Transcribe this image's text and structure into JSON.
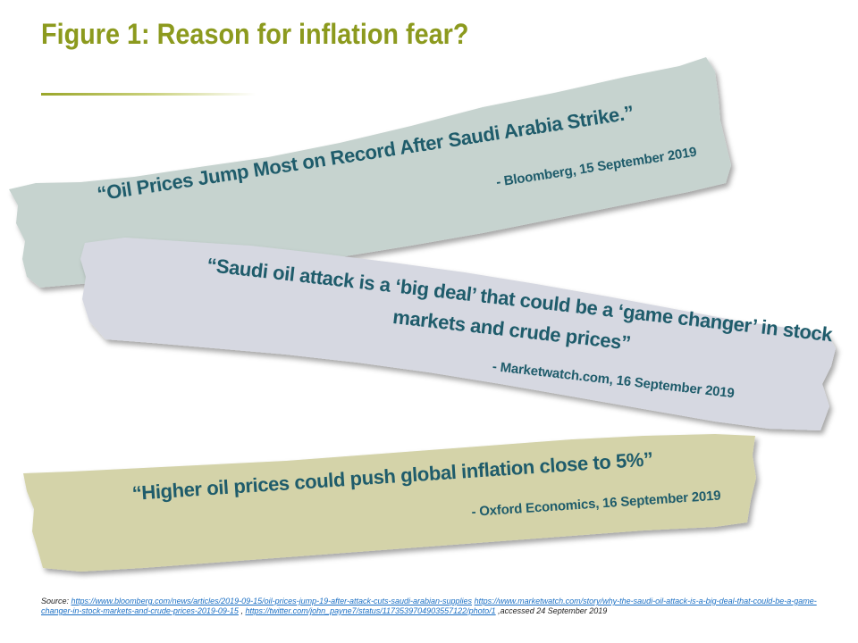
{
  "slide": {
    "title": "Figure 1: Reason for inflation fear?"
  },
  "colors": {
    "title": "#8c9a1e",
    "quote_text": "#1f5c6b",
    "strip_1": "#c6d3cf",
    "strip_2": "#d6d8e1",
    "strip_3": "#d4d3a9",
    "link": "#1a6fc4"
  },
  "quotes": [
    {
      "text": "“Oil Prices Jump Most on Record After Saudi Arabia Strike.”",
      "attribution": "- Bloomberg,  15 September 2019"
    },
    {
      "line1": "“Saudi oil attack is a ‘big deal’ that could be a ‘game changer’ in stock",
      "line2": "markets and crude prices”",
      "attribution": "- Marketwatch.com, 16 September 2019"
    },
    {
      "text": "“Higher oil prices could push global inflation close to 5%”",
      "attribution": "- Oxford Economics, 16 September 2019"
    }
  ],
  "source": {
    "prefix": "Source: ",
    "link1": "https://www.bloomberg.com/news/articles/2019-09-15/oil-prices-jump-19-after-attack-cuts-saudi-arabian-supplies",
    "link2": "https://www.marketwatch.com/story/why-the-saudi-oil-attack-is-a-big-deal-that-could-be-a-game-changer-in-stock-markets-and-crude-prices-2019-09-15",
    "separator": " , ",
    "link3": "https://twitter.com/john_payne7/status/1173539704903557122/photo/1",
    "suffix": " ,accessed 24 September 2019"
  }
}
